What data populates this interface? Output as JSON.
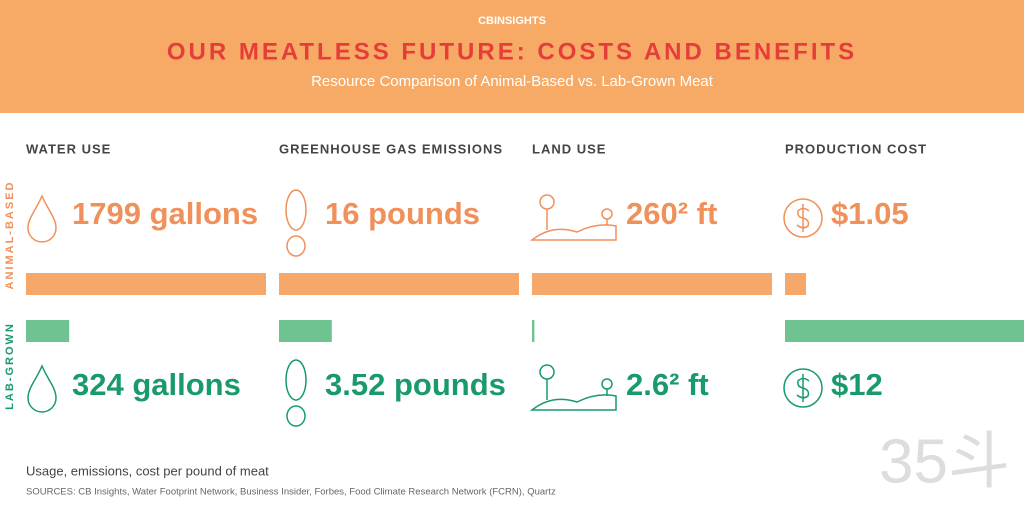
{
  "header": {
    "brand": "CBINSIGHTS",
    "title": "OUR MEATLESS FUTURE: COSTS AND BENEFITS",
    "subtitle": "Resource Comparison of Animal-Based vs. Lab-Grown Meat"
  },
  "row_labels": {
    "animal": "ANIMAL-BASED",
    "lab": "LAB-GROWN"
  },
  "metrics": [
    {
      "name": "WATER USE",
      "icon": "drop",
      "animal": {
        "value": 1799,
        "label": "1799 gallons"
      },
      "lab": {
        "value": 324,
        "label": "324 gallons"
      }
    },
    {
      "name": "GREENHOUSE GAS EMISSIONS",
      "icon": "foot",
      "animal": {
        "value": 16,
        "label": "16 pounds"
      },
      "lab": {
        "value": 3.52,
        "label": "3.52 pounds"
      }
    },
    {
      "name": "LAND USE",
      "icon": "land",
      "animal": {
        "value": 260,
        "label": "260² ft"
      },
      "lab": {
        "value": 2.6,
        "label": "2.6² ft"
      }
    },
    {
      "name": "PRODUCTION COST",
      "icon": "dollar",
      "animal": {
        "value": 1.05,
        "label": "$1.05"
      },
      "lab": {
        "value": 12,
        "label": "$12"
      }
    }
  ],
  "colors": {
    "animal": "#f6a86a",
    "lab": "#6fc390",
    "animal_text": "#f0905a",
    "lab_text": "#199a6b"
  },
  "footnote": "Usage, emissions, cost per pound of meat",
  "sources": "SOURCES: CB Insights, Water Footprint Network, Business Insider, Forbes, Food Climate Research Network (FCRN), Quartz",
  "watermark": "35斗"
}
